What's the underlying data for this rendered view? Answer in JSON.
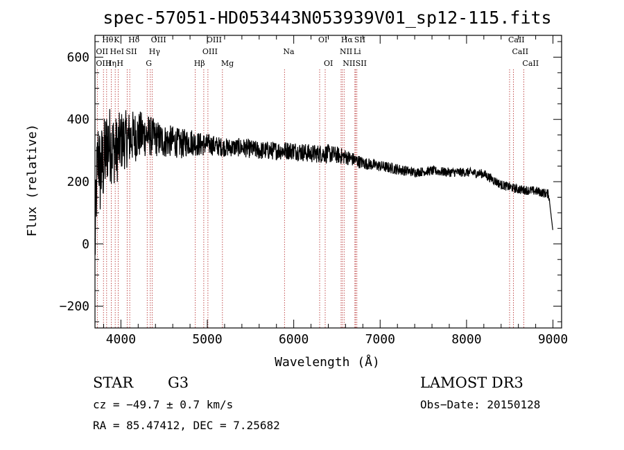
{
  "chart_data": {
    "type": "line",
    "title": "spec-57051-HD053443N053939V01_sp12-115.fits",
    "xlabel": "Wavelength (Å)",
    "ylabel": "Flux (relative)",
    "xlim": [
      3700,
      9100
    ],
    "ylim": [
      -270,
      670
    ],
    "x_ticks": [
      4000,
      5000,
      6000,
      7000,
      8000,
      9000
    ],
    "y_ticks": [
      -200,
      0,
      200,
      400,
      600
    ],
    "x_tick_labels": [
      "4000",
      "5000",
      "6000",
      "7000",
      "8000",
      "9000"
    ],
    "y_tick_labels": [
      "−200",
      "0",
      "200",
      "400",
      "600"
    ],
    "spectral_lines": [
      {
        "label": "Hθ",
        "wavelength": 3798,
        "row": 0
      },
      {
        "label": "K",
        "wavelength": 3934,
        "row": 0
      },
      {
        "label": "Hδ",
        "wavelength": 4102,
        "row": 0
      },
      {
        "label": "OIII",
        "wavelength": 4363,
        "row": 0
      },
      {
        "label": "OIII",
        "wavelength": 5007,
        "row": 0
      },
      {
        "label": "OI",
        "wavelength": 6300,
        "row": 0
      },
      {
        "label": "Hα",
        "wavelength": 6563,
        "row": 0
      },
      {
        "label": "SII",
        "wavelength": 6716,
        "row": 0
      },
      {
        "label": "CaII",
        "wavelength": 8498,
        "row": 0
      },
      {
        "label": "OII",
        "wavelength": 3727,
        "row": 1
      },
      {
        "label": "HeI",
        "wavelength": 3889,
        "row": 1
      },
      {
        "label": "SII",
        "wavelength": 4072,
        "row": 1
      },
      {
        "label": "Hγ",
        "wavelength": 4340,
        "row": 1
      },
      {
        "label": "OIII",
        "wavelength": 4959,
        "row": 1
      },
      {
        "label": "Na",
        "wavelength": 5893,
        "row": 1
      },
      {
        "label": "NII",
        "wavelength": 6548,
        "row": 1
      },
      {
        "label": "Li",
        "wavelength": 6708,
        "row": 1
      },
      {
        "label": "CaII",
        "wavelength": 8542,
        "row": 1
      },
      {
        "label": "OIII",
        "wavelength": 3727,
        "row": 2
      },
      {
        "label": "Hη",
        "wavelength": 3835,
        "row": 2
      },
      {
        "label": "H",
        "wavelength": 3968,
        "row": 2
      },
      {
        "label": "G",
        "wavelength": 4304,
        "row": 2
      },
      {
        "label": "Hβ",
        "wavelength": 4861,
        "row": 2
      },
      {
        "label": "Mg",
        "wavelength": 5175,
        "row": 2
      },
      {
        "label": "OI",
        "wavelength": 6364,
        "row": 2
      },
      {
        "label": "NII",
        "wavelength": 6583,
        "row": 2
      },
      {
        "label": "SII",
        "wavelength": 6731,
        "row": 2
      },
      {
        "label": "CaII",
        "wavelength": 8662,
        "row": 2
      }
    ],
    "series": [
      {
        "name": "flux",
        "x": [
          3700,
          3720,
          3740,
          3760,
          3780,
          3800,
          3850,
          3900,
          3950,
          4000,
          4100,
          4200,
          4300,
          4400,
          4500,
          4600,
          4700,
          4800,
          4900,
          5000,
          5200,
          5400,
          5600,
          5800,
          6000,
          6200,
          6400,
          6600,
          6800,
          7000,
          7200,
          7400,
          7600,
          7800,
          8000,
          8200,
          8400,
          8600,
          8800,
          8950,
          9000
        ],
        "y": [
          -20,
          200,
          300,
          220,
          250,
          260,
          330,
          310,
          300,
          330,
          340,
          350,
          350,
          340,
          330,
          330,
          320,
          330,
          320,
          320,
          310,
          310,
          300,
          300,
          300,
          290,
          290,
          280,
          260,
          250,
          240,
          230,
          235,
          230,
          230,
          225,
          190,
          175,
          170,
          160,
          40
        ],
        "noise": [
          120,
          140,
          140,
          140,
          140,
          140,
          130,
          120,
          110,
          100,
          90,
          80,
          70,
          60,
          55,
          50,
          48,
          45,
          40,
          35,
          30,
          30,
          30,
          30,
          30,
          30,
          30,
          25,
          20,
          18,
          18,
          15,
          15,
          15,
          15,
          15,
          15,
          15,
          15,
          15,
          15
        ]
      }
    ]
  },
  "info": {
    "object_class": "STAR",
    "subclass": "G3",
    "survey": "LAMOST DR3",
    "redshift": "cz = −49.7 ± 0.7 km/s",
    "obs_date": "Obs−Date: 20150128",
    "coords": "RA =  85.47412, DEC =   7.25682"
  }
}
